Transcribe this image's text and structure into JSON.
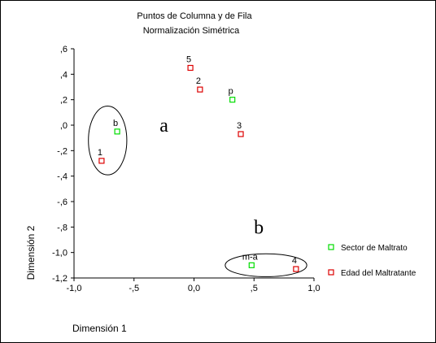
{
  "chart_data": {
    "type": "scatter",
    "title": "Puntos de Columna y de Fila",
    "subtitle": "Normalización Simétrica",
    "xlabel": "Dimensión 1",
    "ylabel": "Dimensión 2",
    "xlim": [
      -1.0,
      1.0
    ],
    "ylim": [
      -1.2,
      0.6
    ],
    "x_ticks": [
      -1.0,
      -0.5,
      0.0,
      0.5,
      1.0
    ],
    "x_tick_labels": [
      "-1,0",
      "-,5",
      "0,0",
      ",5",
      "1,0"
    ],
    "y_ticks": [
      0.6,
      0.4,
      0.2,
      0.0,
      -0.2,
      -0.4,
      -0.6,
      -0.8,
      -1.0,
      -1.2
    ],
    "y_tick_labels": [
      ",6",
      ",4",
      ",2",
      ",0",
      "-,2",
      "-,4",
      "-,6",
      "-,8",
      "-1,0",
      "-1,2"
    ],
    "grid": false,
    "legend_position": "right",
    "series": [
      {
        "name": "Sector de Maltrato",
        "color": "#00dd00",
        "points": [
          {
            "label": "b",
            "x": -0.64,
            "y": -0.05
          },
          {
            "label": "p",
            "x": 0.32,
            "y": 0.2
          },
          {
            "label": "m-a",
            "x": 0.48,
            "y": -1.1
          }
        ]
      },
      {
        "name": "Edad del Maltratante",
        "color": "#dd0000",
        "points": [
          {
            "label": "1",
            "x": -0.77,
            "y": -0.28
          },
          {
            "label": "5",
            "x": -0.03,
            "y": 0.45
          },
          {
            "label": "2",
            "x": 0.05,
            "y": 0.28
          },
          {
            "label": "3",
            "x": 0.39,
            "y": -0.07
          },
          {
            "label": "4",
            "x": 0.85,
            "y": -1.13
          }
        ]
      }
    ],
    "annotations": [
      {
        "text": "a",
        "x": -0.25,
        "y": 0.0
      },
      {
        "text": "b",
        "x": 0.54,
        "y": -0.8
      }
    ],
    "ellipses": [
      {
        "cx": -0.72,
        "cy": -0.12,
        "rx": 0.16,
        "ry": 0.27
      },
      {
        "cx": 0.6,
        "cy": -1.1,
        "rx": 0.34,
        "ry": 0.09
      }
    ]
  }
}
